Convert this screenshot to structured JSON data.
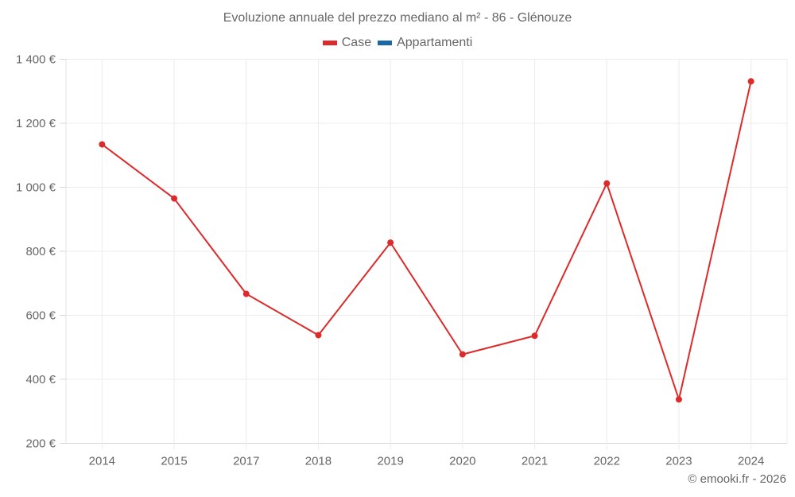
{
  "chart_data": {
    "type": "line",
    "title": "Evoluzione annuale del prezzo mediano al m² - 86 - Glénouze",
    "xlabel": "",
    "ylabel": "",
    "categories": [
      "2014",
      "2015",
      "2017",
      "2018",
      "2019",
      "2020",
      "2021",
      "2022",
      "2023",
      "2024"
    ],
    "series": [
      {
        "name": "Case",
        "color": "#dd2a2a",
        "values": [
          1134,
          965,
          667,
          538,
          827,
          478,
          536,
          1012,
          337,
          1331
        ]
      },
      {
        "name": "Appartamenti",
        "color": "#1a68a8",
        "values": []
      }
    ],
    "ylim": [
      200,
      1400
    ],
    "yticks": [
      200,
      400,
      600,
      800,
      1000,
      1200,
      1400
    ],
    "ytick_labels": [
      "200 €",
      "400 €",
      "600 €",
      "800 €",
      "1 000 €",
      "1 200 €",
      "1 400 €"
    ],
    "grid": true,
    "legend_position": "top-center"
  },
  "header": {
    "title": "Evoluzione annuale del prezzo mediano al m² - 86 - Glénouze"
  },
  "legend": {
    "items": [
      {
        "label": "Case",
        "color": "#dd2a2a"
      },
      {
        "label": "Appartamenti",
        "color": "#1a68a8"
      }
    ]
  },
  "footer": {
    "credit": "© emooki.fr - 2026"
  }
}
